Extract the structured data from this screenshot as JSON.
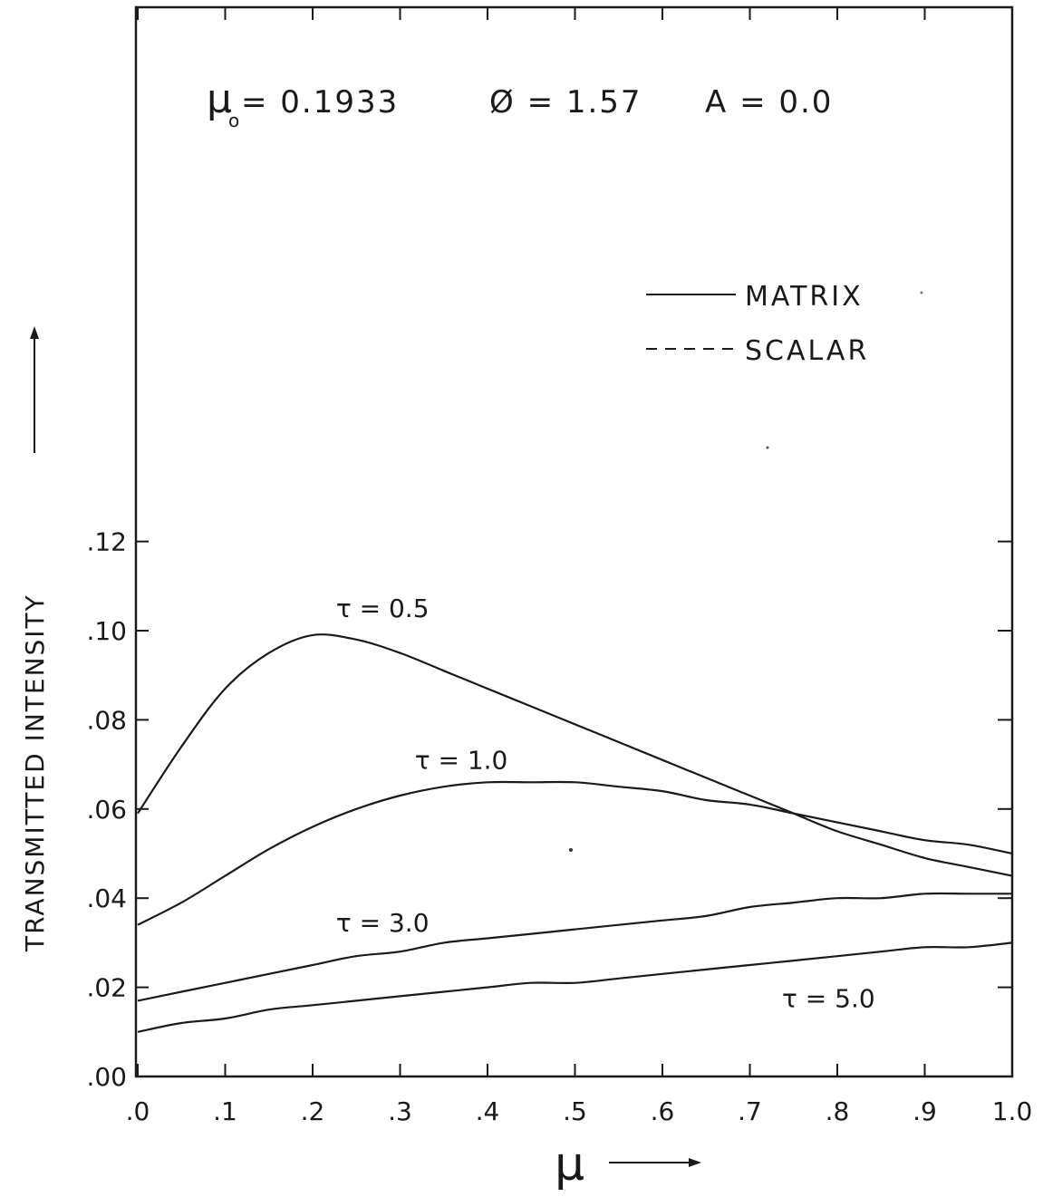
{
  "chart_data": {
    "type": "line",
    "title": "",
    "parameters": {
      "mu0_label": "μ",
      "mu0_sub": "o",
      "mu0_value": "= 0.1933",
      "phi": "Ø = 1.57",
      "albedo": "A = 0.0"
    },
    "xlabel": "μ",
    "ylabel": "TRANSMITTED   INTENSITY",
    "xlim": [
      0.0,
      1.0
    ],
    "ylim": [
      0.0,
      0.17
    ],
    "x_tick_labels": [
      ".0",
      ".1",
      ".2",
      ".3",
      ".4",
      ".5",
      ".6",
      ".7",
      ".8",
      ".9",
      "1.0"
    ],
    "y_tick_labels": [
      ".00",
      ".02",
      ".04",
      ".06",
      ".08",
      ".10",
      ".12"
    ],
    "grid": false,
    "legend": {
      "position": "upper-right",
      "entries": [
        {
          "label": "MATRIX",
          "style": "solid"
        },
        {
          "label": "SCALAR",
          "style": "dashed"
        }
      ]
    },
    "x": [
      0.0,
      0.05,
      0.1,
      0.15,
      0.2,
      0.25,
      0.3,
      0.35,
      0.4,
      0.45,
      0.5,
      0.55,
      0.6,
      0.65,
      0.7,
      0.75,
      0.8,
      0.85,
      0.9,
      0.95,
      1.0
    ],
    "series": [
      {
        "name": "τ = 0.5",
        "label_at": [
          0.28,
          0.103
        ],
        "values": [
          0.059,
          0.074,
          0.087,
          0.095,
          0.099,
          0.098,
          0.095,
          0.091,
          0.087,
          0.083,
          0.079,
          0.075,
          0.071,
          0.067,
          0.063,
          0.059,
          0.055,
          0.052,
          0.049,
          0.047,
          0.045
        ]
      },
      {
        "name": "τ = 1.0",
        "label_at": [
          0.37,
          0.069
        ],
        "values": [
          0.034,
          0.039,
          0.045,
          0.051,
          0.056,
          0.06,
          0.063,
          0.065,
          0.066,
          0.066,
          0.066,
          0.065,
          0.064,
          0.062,
          0.061,
          0.059,
          0.057,
          0.055,
          0.053,
          0.052,
          0.05
        ]
      },
      {
        "name": "τ = 3.0",
        "label_at": [
          0.28,
          0.0325
        ],
        "values": [
          0.017,
          0.019,
          0.021,
          0.023,
          0.025,
          0.027,
          0.028,
          0.03,
          0.031,
          0.032,
          0.033,
          0.034,
          0.035,
          0.036,
          0.038,
          0.039,
          0.04,
          0.04,
          0.041,
          0.041,
          0.041
        ]
      },
      {
        "name": "τ = 5.0",
        "label_at": [
          0.79,
          0.0155
        ],
        "values": [
          0.01,
          0.012,
          0.013,
          0.015,
          0.016,
          0.017,
          0.018,
          0.019,
          0.02,
          0.021,
          0.021,
          0.022,
          0.023,
          0.024,
          0.025,
          0.026,
          0.027,
          0.028,
          0.029,
          0.029,
          0.03
        ]
      }
    ]
  }
}
